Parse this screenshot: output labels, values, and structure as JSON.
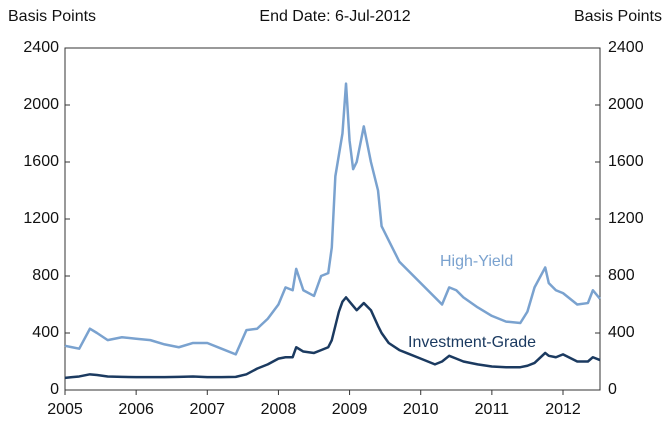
{
  "chart_data": {
    "type": "line",
    "title": "End Date: 6-Jul-2012",
    "y_label": "Basis Points",
    "y2_label": "Basis Points",
    "xlim": [
      2005,
      2012.52
    ],
    "xticks": [
      2005,
      2006,
      2007,
      2008,
      2009,
      2010,
      2011,
      2012
    ],
    "ylim": [
      0,
      2400
    ],
    "yticks": [
      0,
      400,
      800,
      1200,
      1600,
      2000,
      2400
    ],
    "y2lim": [
      0,
      2400
    ],
    "y2ticks": [
      0,
      400,
      800,
      1200,
      1600,
      2000,
      2400
    ],
    "grid": false,
    "x": [
      2005.0,
      2005.1,
      2005.2,
      2005.35,
      2005.45,
      2005.6,
      2005.8,
      2006.0,
      2006.2,
      2006.4,
      2006.6,
      2006.8,
      2007.0,
      2007.2,
      2007.4,
      2007.55,
      2007.7,
      2007.85,
      2008.0,
      2008.1,
      2008.2,
      2008.25,
      2008.35,
      2008.5,
      2008.6,
      2008.7,
      2008.75,
      2008.8,
      2008.85,
      2008.9,
      2008.95,
      2009.0,
      2009.05,
      2009.1,
      2009.2,
      2009.3,
      2009.4,
      2009.45,
      2009.55,
      2009.7,
      2009.8,
      2010.0,
      2010.2,
      2010.3,
      2010.4,
      2010.5,
      2010.6,
      2010.8,
      2011.0,
      2011.2,
      2011.4,
      2011.5,
      2011.6,
      2011.75,
      2011.8,
      2011.9,
      2012.0,
      2012.2,
      2012.35,
      2012.42,
      2012.52
    ],
    "series": [
      {
        "name": "High-Yield",
        "color": "#7aa2cf",
        "values": [
          310,
          300,
          290,
          430,
          400,
          350,
          370,
          360,
          350,
          320,
          300,
          330,
          330,
          290,
          250,
          420,
          430,
          500,
          600,
          720,
          700,
          850,
          700,
          660,
          800,
          820,
          1000,
          1500,
          1650,
          1800,
          2150,
          1750,
          1550,
          1600,
          1850,
          1600,
          1400,
          1150,
          1050,
          900,
          850,
          750,
          650,
          600,
          720,
          700,
          650,
          580,
          520,
          480,
          470,
          550,
          720,
          860,
          750,
          700,
          680,
          600,
          610,
          700,
          640
        ]
      },
      {
        "name": "Investment-Grade",
        "color": "#1b3a60",
        "values": [
          85,
          90,
          95,
          110,
          105,
          95,
          92,
          90,
          90,
          90,
          92,
          95,
          90,
          90,
          92,
          110,
          150,
          180,
          220,
          230,
          230,
          300,
          270,
          260,
          280,
          300,
          350,
          450,
          550,
          620,
          650,
          620,
          590,
          560,
          610,
          560,
          450,
          400,
          330,
          280,
          260,
          220,
          180,
          200,
          240,
          220,
          200,
          180,
          165,
          160,
          160,
          170,
          190,
          260,
          240,
          230,
          250,
          200,
          200,
          230,
          210
        ]
      }
    ]
  }
}
